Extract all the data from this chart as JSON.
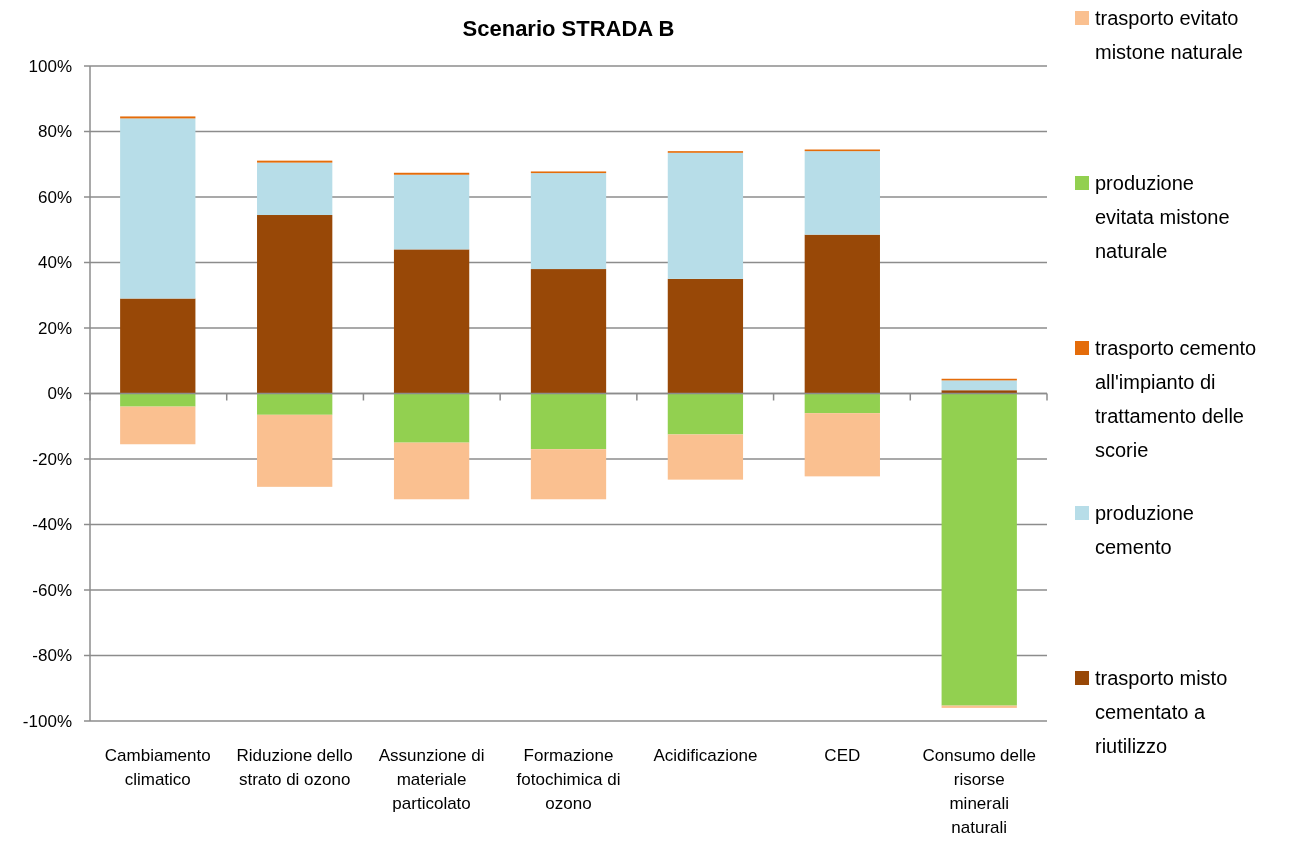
{
  "chart_data": {
    "type": "bar",
    "title": "Scenario STRADA B",
    "stacked": true,
    "legend": "right",
    "grid": "y",
    "categories": [
      "Cambiamento climatico",
      "Riduzione dello strato di ozono",
      "Assunzione di materiale particolato",
      "Formazione fotochimica di ozono",
      "Acidificazione",
      "CED",
      "Consumo delle risorse minerali naturali"
    ],
    "ylim": [
      -100,
      100
    ],
    "yticks": [
      {
        "value": -100,
        "label": "-100%"
      },
      {
        "value": -80,
        "label": "-80%"
      },
      {
        "value": -60,
        "label": "-60%"
      },
      {
        "value": -40,
        "label": "-40%"
      },
      {
        "value": -20,
        "label": "-20%"
      },
      {
        "value": 0,
        "label": "0%"
      },
      {
        "value": 20,
        "label": "20%"
      },
      {
        "value": 40,
        "label": "40%"
      },
      {
        "value": 60,
        "label": "60%"
      },
      {
        "value": 80,
        "label": "80%"
      },
      {
        "value": 100,
        "label": "100%"
      }
    ],
    "series": [
      {
        "name": "trasporto misto cementato a riutilizzo",
        "color": "#984807",
        "values": [
          29,
          54.5,
          44,
          38,
          35,
          48.5,
          1
        ]
      },
      {
        "name": "produzione cemento",
        "color": "#b7dde8",
        "values": [
          55,
          16,
          22.8,
          29.3,
          38.5,
          25.5,
          3
        ]
      },
      {
        "name": "trasporto cemento all'impianto di trattamento delle scorie",
        "color": "#e46c0a",
        "values": [
          0.6,
          0.6,
          0.6,
          0.5,
          0.5,
          0.5,
          0.5
        ]
      },
      {
        "name": "produzione evitata mistone naturale",
        "color": "#92d050",
        "values": [
          -4,
          -6.5,
          -15,
          -17,
          -12.5,
          -6,
          -95.3
        ]
      },
      {
        "name": "trasporto evitato mistone naturale",
        "color": "#fac090",
        "values": [
          -11.5,
          -22,
          -17.3,
          -15.3,
          -13.8,
          -19.3,
          -0.7
        ]
      }
    ]
  }
}
